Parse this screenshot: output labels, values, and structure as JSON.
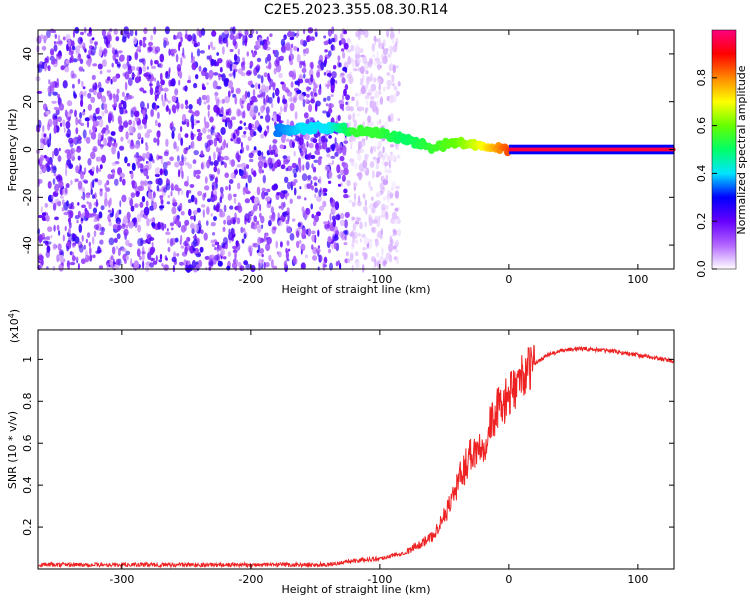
{
  "title": "C2E5.2023.355.08.30.R14",
  "chart_data": [
    {
      "type": "heatmap",
      "name": "spectrogram",
      "xlabel": "Height of straight line (km)",
      "ylabel": "Frequency (Hz)",
      "xlim": [
        -365,
        128
      ],
      "ylim": [
        -50,
        50
      ],
      "x_ticks": [
        -300,
        -200,
        -100,
        0,
        100
      ],
      "y_ticks": [
        -40,
        -20,
        0,
        20,
        40
      ],
      "colorbar": {
        "label": "Normalized spectral amplitude",
        "range": [
          0,
          1
        ],
        "ticks": [
          0.0,
          0.2,
          0.4,
          0.6,
          0.8
        ],
        "colormap": [
          "#ffffff",
          "#b366ff",
          "#6600ff",
          "#0000ff",
          "#00e5ff",
          "#00ff66",
          "#66ff00",
          "#ffff00",
          "#ff8800",
          "#ff0000",
          "#ff0080"
        ]
      },
      "ridge": {
        "x": [
          -180,
          -160,
          -140,
          -120,
          -100,
          -80,
          -60,
          -40,
          -20,
          0,
          50,
          100,
          128
        ],
        "frequency": [
          8,
          9,
          9,
          8,
          7,
          4,
          1,
          3,
          1,
          0,
          0,
          0,
          0
        ],
        "amplitude": [
          0.35,
          0.4,
          0.4,
          0.55,
          0.55,
          0.5,
          0.55,
          0.6,
          0.7,
          0.85,
          0.95,
          0.95,
          0.95
        ]
      },
      "noise_region_x": [
        -365,
        -125
      ]
    },
    {
      "type": "line",
      "name": "snr",
      "xlabel": "Height of straight line (km)",
      "ylabel": "SNR (10 * v/v)",
      "y_multiplier": "(x10",
      "y_multiplier_exp": "4",
      "y_multiplier_close": ")",
      "xlim": [
        -365,
        128
      ],
      "ylim": [
        0,
        1.14
      ],
      "x_ticks": [
        -300,
        -200,
        -100,
        0,
        100
      ],
      "y_ticks": [
        0.2,
        0.4,
        0.6,
        0.8,
        1
      ],
      "color": "#ee2222",
      "series": [
        {
          "x": [
            -365,
            -300,
            -200,
            -140,
            -120,
            -100,
            -80,
            -60,
            -50,
            -40,
            -30,
            -20,
            -10,
            0,
            10,
            20,
            30,
            40,
            50,
            60,
            80,
            100,
            110,
            128
          ],
          "y": [
            0.02,
            0.02,
            0.02,
            0.02,
            0.04,
            0.05,
            0.08,
            0.15,
            0.25,
            0.4,
            0.55,
            0.6,
            0.75,
            0.82,
            0.92,
            0.98,
            1.02,
            1.04,
            1.05,
            1.05,
            1.04,
            1.02,
            1.01,
            0.99
          ]
        }
      ]
    }
  ]
}
